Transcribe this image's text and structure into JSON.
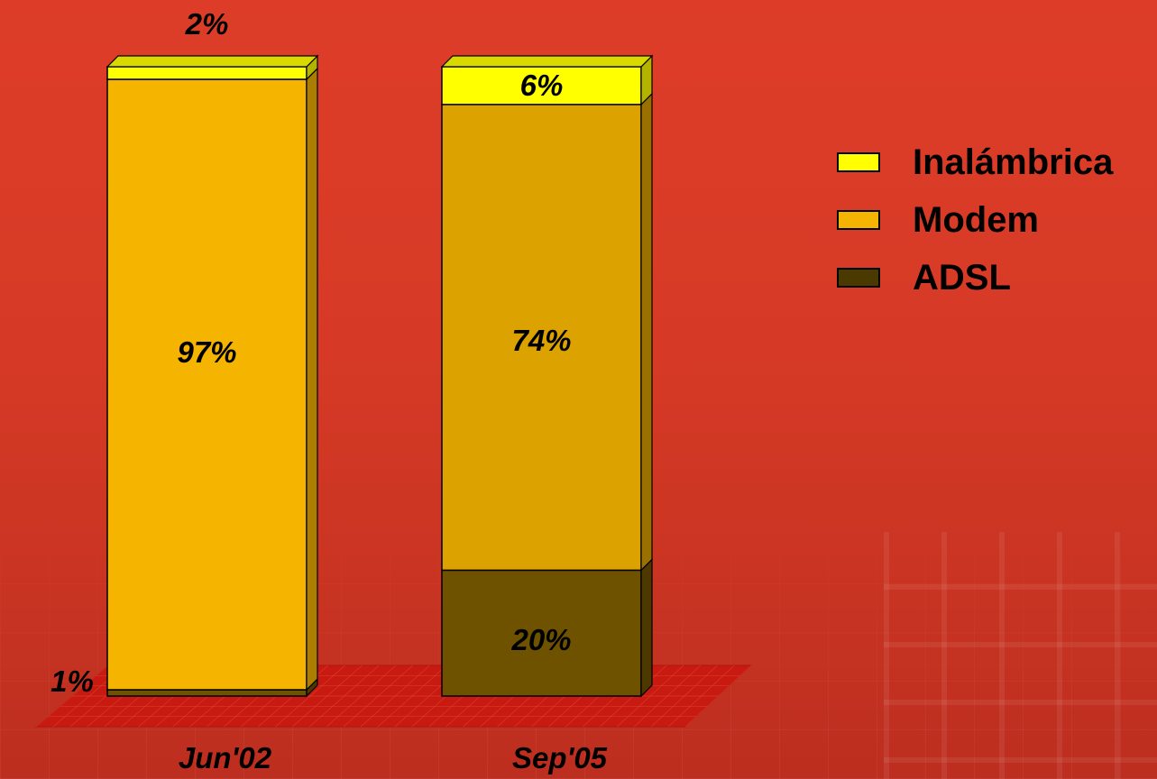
{
  "chart_data": {
    "type": "bar",
    "stacked": true,
    "categories": [
      "Jun'02",
      "Sep'05"
    ],
    "series": [
      {
        "name": "ADSL",
        "values": [
          1,
          20
        ],
        "labels": [
          "1%",
          "20%"
        ],
        "color": "#6e5200"
      },
      {
        "name": "Modem",
        "values": [
          97,
          74
        ],
        "labels": [
          "97%",
          "74%"
        ],
        "color": "#f5b400"
      },
      {
        "name": "Inalámbrica",
        "values": [
          2,
          6
        ],
        "labels": [
          "2%",
          "6%"
        ],
        "color": "#ffff00"
      }
    ],
    "sep05_modem_color": "#dca200",
    "ylim": [
      0,
      100
    ],
    "legend_position": "right"
  },
  "legend": {
    "items": [
      {
        "label": "Inalámbrica",
        "color": "#ffff00"
      },
      {
        "label": "Modem",
        "color": "#f5b400"
      },
      {
        "label": "ADSL",
        "color": "#4a3a00"
      }
    ]
  }
}
